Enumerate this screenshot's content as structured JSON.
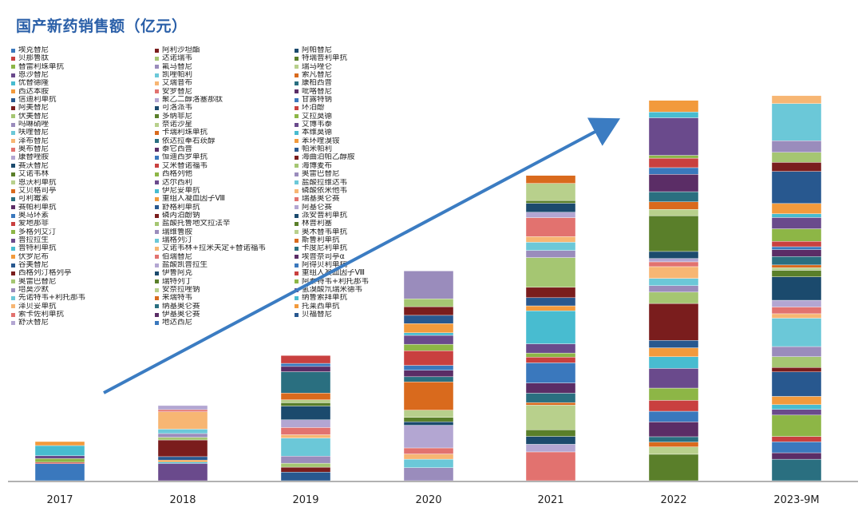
{
  "chart_data": {
    "type": "stacked_bar",
    "title": "国产新药销售额（亿元）",
    "categories": [
      "2017",
      "2018",
      "2019",
      "2020",
      "2021",
      "2022",
      "2023-9M"
    ],
    "legend_columns": [
      [
        "埃克替尼",
        "贝那鲁肽",
        "替雷利珠单抗",
        "恩沙替尼",
        "优替德隆",
        "西达本胺",
        "信迪利单抗",
        "阿美替尼",
        "伏美替尼",
        "吗啉硝唑",
        "呋喹替尼",
        "泽布替尼",
        "奥布替尼",
        "康替唑胺",
        "赛沃替尼",
        "艾诺韦林",
        "恩沃利单抗",
        "艾贝格司亭",
        "可利霉素",
        "赛帕利单抗",
        "奥马环素",
        "爱地那非",
        "多格列艾汀",
        "普拉拉生",
        "普特利单抗",
        "伏罗尼布",
        "谷美替尼",
        "西格列汀格列亭",
        "奥雷巴替尼",
        "培莫沙默",
        "先诺特韦+利托那韦",
        "泽贝妥单抗",
        "索卡佐利单抗",
        "舒沃替尼"
      ],
      [
        "阿利沙坦酯",
        "达诺瑞韦",
        "氟马替尼",
        "凯唑帕利",
        "艾瑞昔布",
        "安罗替尼",
        "聚乙二醇洛塞那肽",
        "可洛派韦",
        "多纳非尼",
        "奈诺沙星",
        "卡瑞利珠单抗",
        "依达拉奉右莰醇",
        "泰它西普",
        "恒迪西罗单抗",
        "艾米替诺福韦",
        "西格列他",
        "达尔西利",
        "伊尼妥单抗",
        "重组人凝血因子Ⅷ",
        "舒格利单抗",
        "磷丙泊酚钠",
        "盐酸托鲁地文拉法辛",
        "瑞维鲁胺",
        "瑞格列汀",
        "艾诺韦林+拉米夫定+替诺福韦",
        "伯瑞替尼",
        "盐酸凯普拉生",
        "伊鲁阿克",
        "瑞特列丁",
        "安奈拉唑钠",
        "来瑞特韦",
        "纳基奥仑赛",
        "伊基奥仑赛",
        "地达西尼"
      ],
      [
        "阿帕替尼",
        "特瑞普利单抗",
        "瑞马唑仑",
        "索凡替尼",
        "康柏西普",
        "吡咯替尼",
        "甘露特钠",
        "环泊酚",
        "艾拉莫德",
        "艾博韦泰",
        "本维莫德",
        "苯环喹溴铵",
        "帕米帕利",
        "海曲泊帕乙醇胺",
        "海博麦布",
        "奥雷巴替尼",
        "盐酸拉维达韦",
        "磷酸依米他韦",
        "瑞基奥仑赛",
        "阿基仑赛",
        "派安普利单抗",
        "林普利塞",
        "奥木替韦单抗",
        "斯鲁利单抗",
        "卡度尼利单抗",
        "埃普奈司亭α",
        "阿得贝利单抗",
        "重组人凝血因子Ⅷ",
        "阿泰特韦+利托那韦",
        "氢溴酸氘瑞米德韦",
        "纳鲁索拜单抗",
        "托莱西单抗",
        "贝福替尼"
      ]
    ],
    "series_palette": [
      "#3a78bd",
      "#c9403f",
      "#8db646",
      "#6a4a8c",
      "#48bcd0",
      "#f29a3c",
      "#28588f",
      "#7a1d1d",
      "#a5c672",
      "#9a8cbc",
      "#6bc8d8",
      "#f7b673",
      "#e2726f",
      "#b3a6d2",
      "#1b4a6d",
      "#5a7f2a",
      "#b8d08c",
      "#d96a1d",
      "#2a6f80",
      "#5b2d66"
    ],
    "approx_totals": [
      25,
      48,
      80,
      134,
      195,
      243,
      246
    ]
  }
}
